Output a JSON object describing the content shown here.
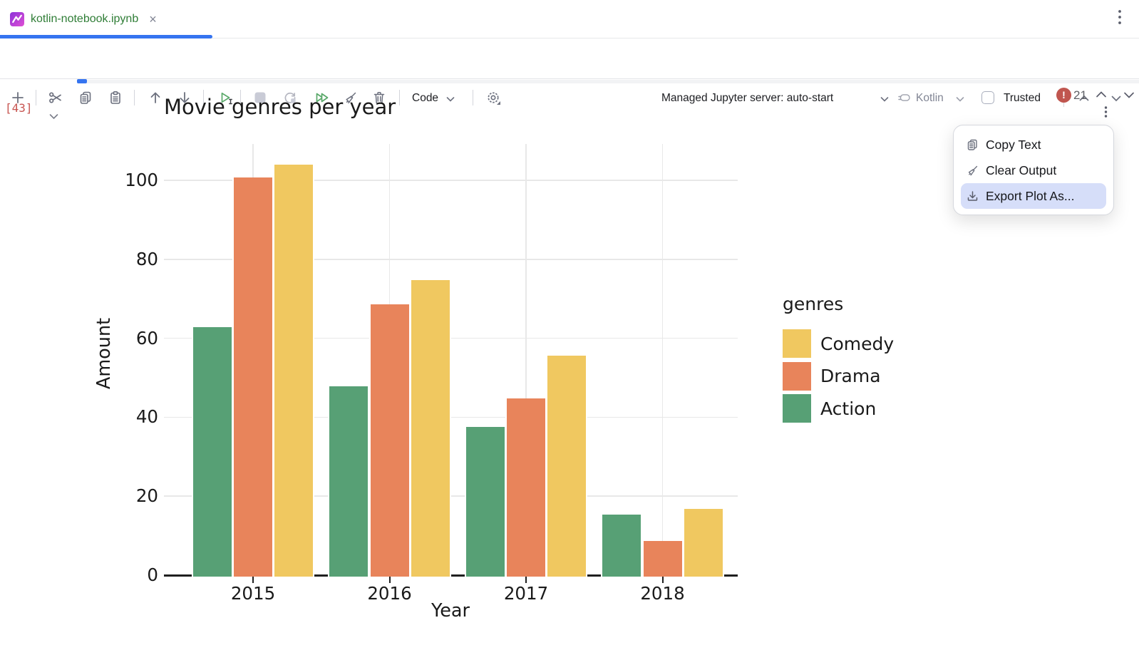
{
  "tab": {
    "title": "kotlin-notebook.ipynb",
    "close_glyph": "×"
  },
  "toolbar": {
    "code_label": "Code",
    "server_label": "Managed Jupyter server: auto-start",
    "kernel_label": "Kotlin",
    "trusted_label": "Trusted",
    "icons": [
      "add-cell-icon",
      "cut-icon",
      "copy-icon",
      "paste-icon",
      "move-up-icon",
      "move-down-icon",
      "run-cell-icon",
      "stop-icon",
      "restart-kernel-icon",
      "run-all-icon",
      "clear-outputs-icon",
      "delete-cell-icon",
      "settings-gear-icon",
      "plug-icon"
    ]
  },
  "cell": {
    "execution_count": "[43]",
    "error_count": "21"
  },
  "output_menu": {
    "items": [
      {
        "label": "Copy Text",
        "icon": "copy-icon",
        "highlighted": false
      },
      {
        "label": "Clear Output",
        "icon": "broom-icon",
        "highlighted": false
      },
      {
        "label": "Export Plot As...",
        "icon": "download-icon",
        "highlighted": true
      }
    ]
  },
  "chart_data": {
    "type": "bar",
    "title": "Movie genres per year",
    "xlabel": "Year",
    "ylabel": "Amount",
    "legend_title": "genres",
    "legend_position": "right",
    "grid": true,
    "categories": [
      "2015",
      "2016",
      "2017",
      "2018"
    ],
    "series": [
      {
        "name": "Action",
        "color": "#57a075",
        "values": [
          62.8,
          47.8,
          37.6,
          15.4
        ]
      },
      {
        "name": "Drama",
        "color": "#e8845b",
        "values": [
          100.7,
          68.6,
          44.8,
          8.7
        ]
      },
      {
        "name": "Comedy",
        "color": "#f0c860",
        "values": [
          103.9,
          74.7,
          55.6,
          16.7
        ]
      }
    ],
    "legend_order": [
      "Comedy",
      "Drama",
      "Action"
    ],
    "ylim": [
      0,
      109
    ],
    "yticks": [
      0,
      20,
      40,
      60,
      80,
      100
    ]
  },
  "colors": {
    "accent_blue": "#3574f0",
    "tab_title_green": "#2f7d36",
    "run_green": "#59a869",
    "error_red": "#c0564f",
    "exec_count_red": "#c75450",
    "menu_highlight": "#d6def9"
  }
}
